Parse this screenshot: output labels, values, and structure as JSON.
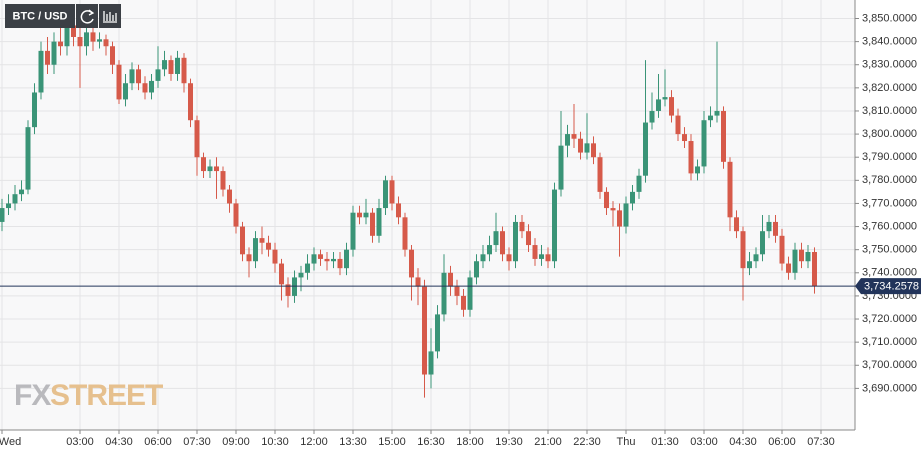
{
  "chart_data": {
    "type": "candlestick",
    "symbol": "BTC / USD",
    "open": [
      3762,
      3768,
      3770,
      3774,
      3776,
      3803,
      3818,
      3836,
      3830,
      3840,
      3838,
      3847,
      3842,
      3838,
      3844,
      3840,
      3841,
      3838,
      3830,
      3815,
      3822,
      3828,
      3822,
      3818,
      3823,
      3828,
      3832,
      3826,
      3833,
      3822,
      3806,
      3790,
      3784,
      3786,
      3784,
      3776,
      3770,
      3760,
      3748,
      3745,
      3755,
      3753,
      3750,
      3744,
      3735,
      3730,
      3738,
      3740,
      3744,
      3748,
      3746,
      3745,
      3746,
      3742,
      3750,
      3766,
      3764,
      3766,
      3756,
      3768,
      3780,
      3770,
      3764,
      3750,
      3738,
      3734,
      3696,
      3706,
      3722,
      3740,
      3734,
      3730,
      3724,
      3738,
      3745,
      3748,
      3752,
      3758,
      3748,
      3745,
      3762,
      3758,
      3752,
      3746,
      3748,
      3745,
      3776,
      3795,
      3800,
      3798,
      3792,
      3796,
      3790,
      3775,
      3768,
      3767,
      3760,
      3770,
      3775,
      3782,
      3805,
      3810,
      3815,
      3816,
      3808,
      3800,
      3797,
      3783,
      3786,
      3806,
      3808,
      3810,
      3788,
      3764,
      3758,
      3742,
      3745,
      3748,
      3758,
      3762,
      3756,
      3744,
      3740,
      3750,
      3745,
      3749
    ],
    "high": [
      3772,
      3774,
      3778,
      3780,
      3806,
      3822,
      3840,
      3842,
      3844,
      3846,
      3850,
      3852,
      3846,
      3847,
      3847,
      3844,
      3843,
      3840,
      3832,
      3826,
      3831,
      3830,
      3825,
      3826,
      3838,
      3836,
      3834,
      3836,
      3835,
      3824,
      3808,
      3792,
      3789,
      3790,
      3786,
      3778,
      3772,
      3762,
      3751,
      3758,
      3760,
      3756,
      3753,
      3746,
      3738,
      3741,
      3743,
      3748,
      3751,
      3750,
      3749,
      3749,
      3749,
      3753,
      3769,
      3769,
      3772,
      3768,
      3772,
      3782,
      3782,
      3773,
      3766,
      3752,
      3742,
      3737,
      3716,
      3726,
      3748,
      3743,
      3737,
      3733,
      3741,
      3748,
      3752,
      3756,
      3766,
      3760,
      3751,
      3765,
      3765,
      3761,
      3755,
      3752,
      3751,
      3779,
      3810,
      3804,
      3813,
      3801,
      3809,
      3799,
      3792,
      3777,
      3771,
      3770,
      3773,
      3778,
      3785,
      3832,
      3818,
      3826,
      3828,
      3819,
      3811,
      3803,
      3800,
      3789,
      3810,
      3812,
      3840,
      3812,
      3790,
      3767,
      3760,
      3749,
      3751,
      3765,
      3765,
      3765,
      3759,
      3747,
      3753,
      3753,
      3752,
      3751
    ],
    "low": [
      3758,
      3765,
      3767,
      3771,
      3774,
      3800,
      3815,
      3826,
      3826,
      3834,
      3834,
      3838,
      3820,
      3834,
      3836,
      3837,
      3834,
      3826,
      3813,
      3812,
      3819,
      3819,
      3815,
      3815,
      3820,
      3825,
      3823,
      3823,
      3818,
      3803,
      3782,
      3781,
      3781,
      3772,
      3773,
      3766,
      3757,
      3745,
      3738,
      3742,
      3748,
      3747,
      3740,
      3728,
      3725,
      3727,
      3732,
      3737,
      3741,
      3743,
      3741,
      3742,
      3739,
      3739,
      3747,
      3761,
      3761,
      3753,
      3753,
      3765,
      3767,
      3761,
      3747,
      3728,
      3726,
      3686,
      3690,
      3703,
      3719,
      3730,
      3726,
      3721,
      3721,
      3735,
      3742,
      3745,
      3749,
      3745,
      3741,
      3742,
      3755,
      3749,
      3743,
      3743,
      3742,
      3742,
      3773,
      3790,
      3794,
      3789,
      3789,
      3787,
      3772,
      3765,
      3760,
      3747,
      3757,
      3767,
      3772,
      3779,
      3802,
      3807,
      3812,
      3805,
      3797,
      3794,
      3780,
      3780,
      3783,
      3803,
      3805,
      3785,
      3758,
      3755,
      3728,
      3739,
      3742,
      3745,
      3755,
      3753,
      3741,
      3737,
      3737,
      3742,
      3742,
      3731
    ],
    "close": [
      3768,
      3770,
      3774,
      3776,
      3803,
      3818,
      3836,
      3830,
      3840,
      3838,
      3847,
      3842,
      3838,
      3844,
      3840,
      3841,
      3838,
      3830,
      3815,
      3822,
      3828,
      3822,
      3818,
      3823,
      3828,
      3832,
      3826,
      3833,
      3822,
      3806,
      3790,
      3784,
      3786,
      3784,
      3776,
      3770,
      3760,
      3748,
      3745,
      3755,
      3753,
      3750,
      3744,
      3735,
      3730,
      3738,
      3740,
      3744,
      3748,
      3746,
      3745,
      3746,
      3742,
      3750,
      3766,
      3764,
      3766,
      3756,
      3768,
      3780,
      3770,
      3764,
      3750,
      3738,
      3734,
      3696,
      3706,
      3722,
      3740,
      3734,
      3730,
      3724,
      3738,
      3745,
      3748,
      3752,
      3758,
      3748,
      3745,
      3762,
      3758,
      3752,
      3746,
      3748,
      3745,
      3776,
      3795,
      3800,
      3798,
      3792,
      3796,
      3790,
      3775,
      3768,
      3767,
      3760,
      3770,
      3775,
      3782,
      3805,
      3810,
      3815,
      3816,
      3808,
      3800,
      3797,
      3783,
      3786,
      3806,
      3808,
      3810,
      3788,
      3764,
      3758,
      3742,
      3745,
      3748,
      3758,
      3762,
      3756,
      3744,
      3740,
      3750,
      3745,
      3749,
      3734.2578
    ],
    "last_label": "3,734.2578",
    "up_color": "#3a9477",
    "down_color": "#d65a4a",
    "last_color": "#22345a",
    "grid": true,
    "ylim": [
      3672,
      3858
    ],
    "yticks": [
      {
        "value": 3690,
        "label": "3,690.0000"
      },
      {
        "value": 3700,
        "label": "3,700.0000"
      },
      {
        "value": 3710,
        "label": "3,710.0000"
      },
      {
        "value": 3720,
        "label": "3,720.0000"
      },
      {
        "value": 3730,
        "label": "3,730.0000"
      },
      {
        "value": 3740,
        "label": "3,740.0000"
      },
      {
        "value": 3750,
        "label": "3,750.0000"
      },
      {
        "value": 3760,
        "label": "3,760.0000"
      },
      {
        "value": 3770,
        "label": "3,770.0000"
      },
      {
        "value": 3780,
        "label": "3,780.0000"
      },
      {
        "value": 3790,
        "label": "3,790.0000"
      },
      {
        "value": 3800,
        "label": "3,800.0000"
      },
      {
        "value": 3810,
        "label": "3,810.0000"
      },
      {
        "value": 3820,
        "label": "3,820.0000"
      },
      {
        "value": 3830,
        "label": "3,830.0000"
      },
      {
        "value": 3840,
        "label": "3,840.0000"
      },
      {
        "value": 3850,
        "label": "3,850.0000"
      }
    ],
    "xticks": [
      {
        "value": 0,
        "label": "Wed"
      },
      {
        "value": 12,
        "label": "03:00"
      },
      {
        "value": 18,
        "label": "04:30"
      },
      {
        "value": 24,
        "label": "06:00"
      },
      {
        "value": 30,
        "label": "07:30"
      },
      {
        "value": 36,
        "label": "09:00"
      },
      {
        "value": 42,
        "label": "10:30"
      },
      {
        "value": 48,
        "label": "12:00"
      },
      {
        "value": 54,
        "label": "13:30"
      },
      {
        "value": 60,
        "label": "15:00"
      },
      {
        "value": 66,
        "label": "16:30"
      },
      {
        "value": 72,
        "label": "18:00"
      },
      {
        "value": 78,
        "label": "19:30"
      },
      {
        "value": 84,
        "label": "21:00"
      },
      {
        "value": 90,
        "label": "22:30"
      },
      {
        "value": 96,
        "label": "Thu"
      },
      {
        "value": 102,
        "label": "01:30"
      },
      {
        "value": 108,
        "label": "03:00"
      },
      {
        "value": 114,
        "label": "04:30"
      },
      {
        "value": 120,
        "label": "06:00"
      },
      {
        "value": 126,
        "label": "07:30"
      }
    ]
  },
  "logo": {
    "fx": "FX",
    "street": "STREET"
  }
}
